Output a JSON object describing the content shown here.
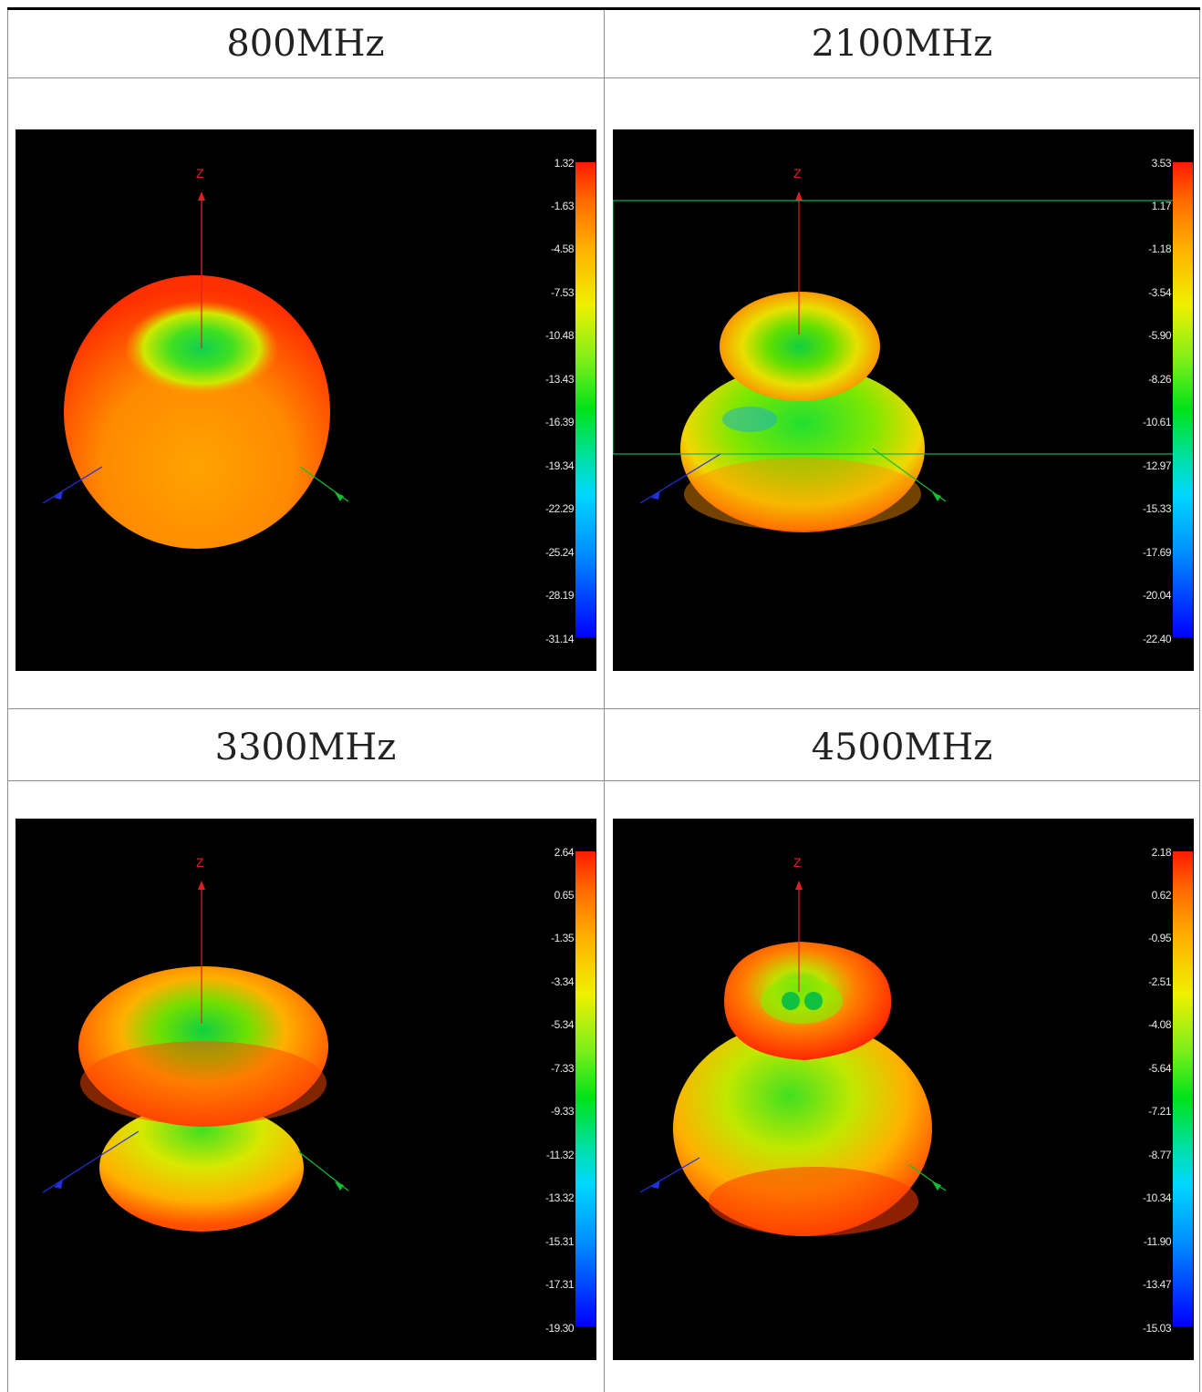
{
  "cells": [
    {
      "title": "800MHz",
      "axis_label": "Z",
      "scale": [
        "1.32",
        "-1.63",
        "-4.58",
        "-7.53",
        "-10.48",
        "-13.43",
        "-16.39",
        "-19.34",
        "-22.29",
        "-25.24",
        "-28.19",
        "-31.14"
      ]
    },
    {
      "title": "2100MHz",
      "axis_label": "Z",
      "scale": [
        "3.53",
        "1.17",
        "-1.18",
        "-3.54",
        "-5.90",
        "-8.26",
        "-10.61",
        "-12.97",
        "-15.33",
        "-17.69",
        "-20.04",
        "-22.40"
      ]
    },
    {
      "title": "3300MHz",
      "axis_label": "Z",
      "scale": [
        "2.64",
        "0.65",
        "-1.35",
        "-3.34",
        "-5.34",
        "-7.33",
        "-9.33",
        "-11.32",
        "-13.32",
        "-15.31",
        "-17.31",
        "-19.30"
      ]
    },
    {
      "title": "4500MHz",
      "axis_label": "Z",
      "scale": [
        "2.18",
        "0.62",
        "-0.95",
        "-2.51",
        "-4.08",
        "-5.64",
        "-7.21",
        "-8.77",
        "-10.34",
        "-11.90",
        "-13.47",
        "-15.03"
      ]
    }
  ],
  "colors": {
    "high": "#ff2a00",
    "mid": "#f0e800",
    "low_mid": "#00e000",
    "low": "#0000ff",
    "z_axis": "#e02020",
    "x_axis": "#2030e0",
    "y_axis": "#10c030"
  }
}
